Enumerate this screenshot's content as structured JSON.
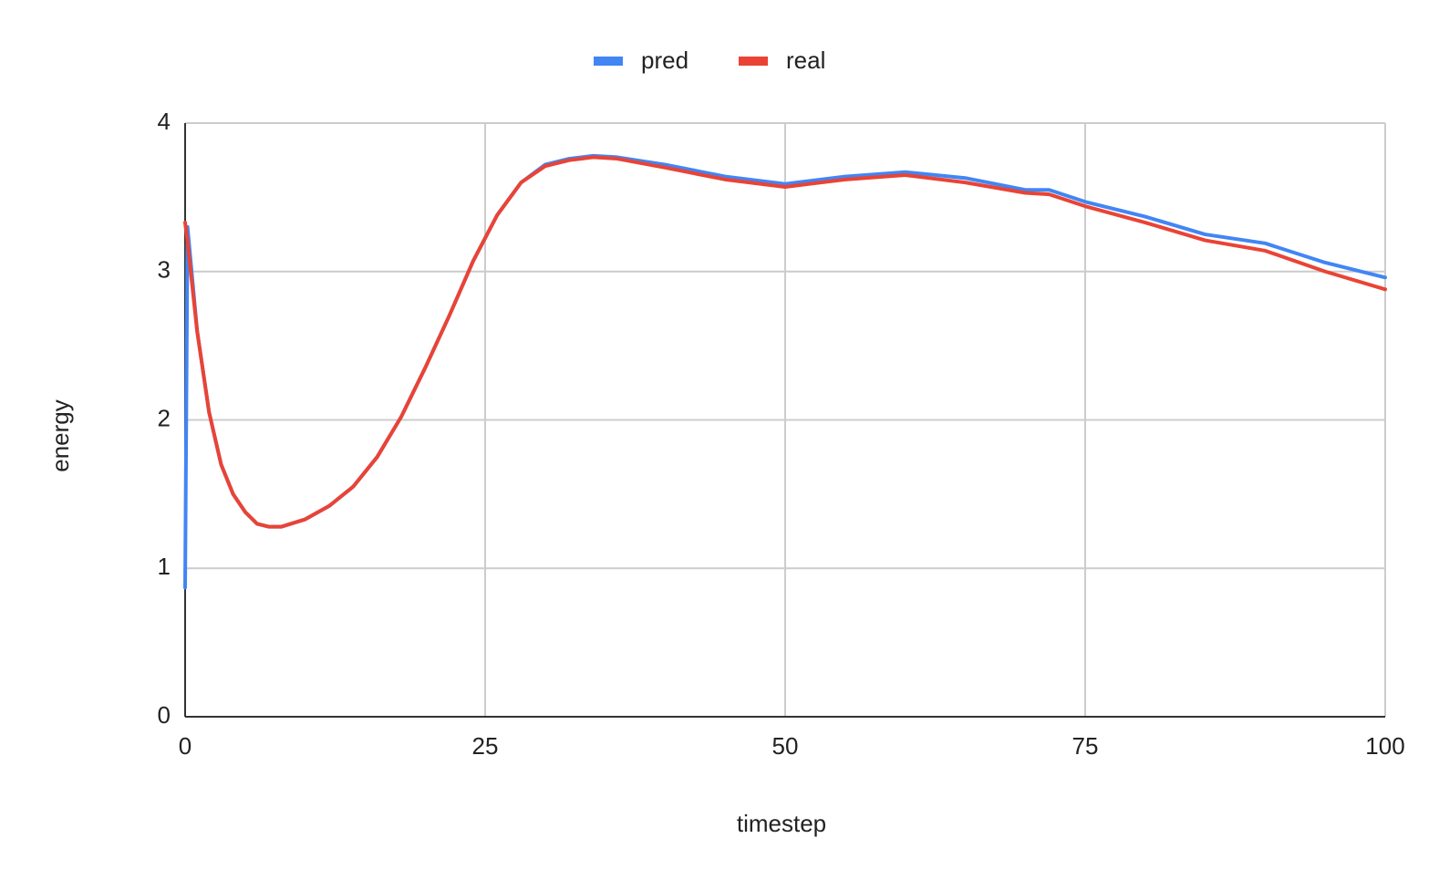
{
  "chart_data": {
    "type": "line",
    "x_label": "timestep",
    "y_label": "energy",
    "x": [
      0,
      0.2,
      1,
      2,
      3,
      4,
      5,
      6,
      7,
      8,
      10,
      12,
      14,
      16,
      18,
      20,
      22,
      24,
      26,
      28,
      30,
      32,
      34,
      36,
      40,
      45,
      50,
      55,
      60,
      65,
      70,
      72,
      75,
      80,
      85,
      90,
      95,
      100
    ],
    "series": [
      {
        "name": "pred",
        "color": "#4285f4",
        "values": [
          0.87,
          3.3,
          2.6,
          2.05,
          1.7,
          1.5,
          1.38,
          1.3,
          1.28,
          1.28,
          1.33,
          1.42,
          1.55,
          1.75,
          2.02,
          2.35,
          2.7,
          3.07,
          3.38,
          3.6,
          3.72,
          3.76,
          3.78,
          3.77,
          3.72,
          3.64,
          3.59,
          3.64,
          3.67,
          3.63,
          3.55,
          3.55,
          3.47,
          3.37,
          3.25,
          3.19,
          3.06,
          2.96
        ]
      },
      {
        "name": "real",
        "color": "#ea4335",
        "values": [
          3.33,
          3.2,
          2.6,
          2.05,
          1.7,
          1.5,
          1.38,
          1.3,
          1.28,
          1.28,
          1.33,
          1.42,
          1.55,
          1.75,
          2.02,
          2.35,
          2.7,
          3.07,
          3.38,
          3.6,
          3.71,
          3.75,
          3.77,
          3.76,
          3.7,
          3.62,
          3.57,
          3.62,
          3.65,
          3.6,
          3.53,
          3.52,
          3.44,
          3.33,
          3.21,
          3.14,
          3.0,
          2.88
        ]
      }
    ],
    "xlim": [
      0,
      100
    ],
    "xticks": [
      0,
      25,
      50,
      75,
      100
    ],
    "ylim": [
      0,
      4
    ],
    "yticks": [
      0,
      1,
      2,
      3,
      4
    ],
    "grid": true,
    "legend": "top"
  }
}
